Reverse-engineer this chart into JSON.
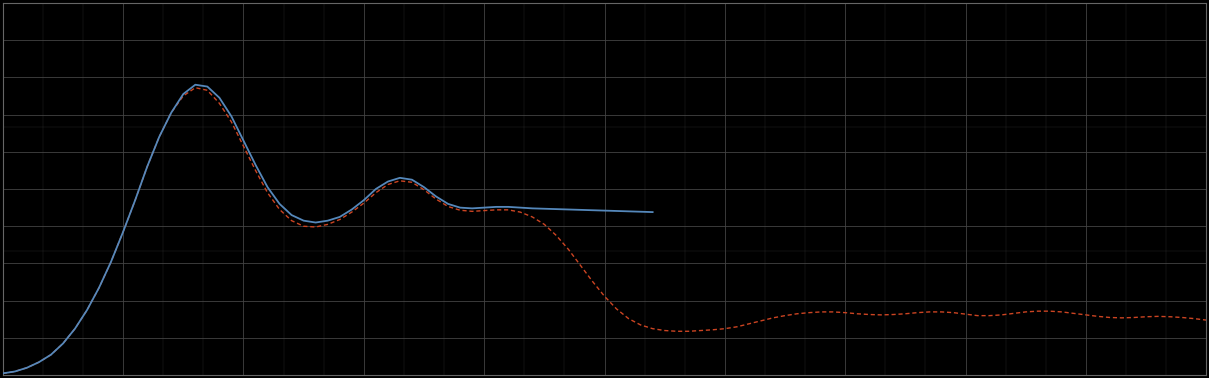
{
  "background_color": "#000000",
  "plot_bg_color": "#000000",
  "grid_color": "#444444",
  "blue_color": "#5588bb",
  "red_color": "#cc4422",
  "xlim": [
    0,
    100
  ],
  "ylim": [
    0,
    10
  ],
  "figsize": [
    12.09,
    3.78
  ],
  "dpi": 100,
  "blue_x": [
    0,
    1,
    2,
    3,
    4,
    5,
    6,
    7,
    8,
    9,
    10,
    11,
    12,
    13,
    14,
    15,
    16,
    17,
    18,
    19,
    20,
    21,
    22,
    23,
    24,
    25,
    26,
    27,
    28,
    29,
    30,
    31,
    32,
    33,
    34,
    35,
    36,
    37,
    38,
    39,
    40,
    41,
    42,
    43,
    44,
    45,
    46,
    47,
    48,
    49,
    50,
    51,
    52,
    53,
    54
  ],
  "blue_y": [
    0.05,
    0.1,
    0.2,
    0.35,
    0.55,
    0.85,
    1.25,
    1.75,
    2.35,
    3.05,
    3.85,
    4.7,
    5.6,
    6.4,
    7.05,
    7.55,
    7.8,
    7.75,
    7.45,
    6.95,
    6.3,
    5.65,
    5.05,
    4.6,
    4.3,
    4.15,
    4.1,
    4.15,
    4.25,
    4.45,
    4.7,
    5.0,
    5.2,
    5.3,
    5.25,
    5.05,
    4.8,
    4.6,
    4.5,
    4.48,
    4.5,
    4.52,
    4.52,
    4.5,
    4.48,
    4.47,
    4.46,
    4.45,
    4.44,
    4.43,
    4.42,
    4.41,
    4.4,
    4.39,
    4.38
  ],
  "red_x": [
    0,
    1,
    2,
    3,
    4,
    5,
    6,
    7,
    8,
    9,
    10,
    11,
    12,
    13,
    14,
    15,
    16,
    17,
    18,
    19,
    20,
    21,
    22,
    23,
    24,
    25,
    26,
    27,
    28,
    29,
    30,
    31,
    32,
    33,
    34,
    35,
    36,
    37,
    38,
    39,
    40,
    41,
    42,
    43,
    44,
    45,
    46,
    47,
    48,
    49,
    50,
    51,
    52,
    53,
    54,
    55,
    56,
    57,
    58,
    59,
    60,
    61,
    62,
    63,
    64,
    65,
    66,
    67,
    68,
    69,
    70,
    71,
    72,
    73,
    74,
    75,
    76,
    77,
    78,
    79,
    80,
    81,
    82,
    83,
    84,
    85,
    86,
    87,
    88,
    89,
    90,
    91,
    92,
    93,
    94,
    95,
    96,
    97,
    98,
    99,
    100
  ],
  "red_y": [
    0.05,
    0.1,
    0.2,
    0.35,
    0.55,
    0.85,
    1.25,
    1.75,
    2.35,
    3.05,
    3.85,
    4.7,
    5.6,
    6.4,
    7.05,
    7.5,
    7.72,
    7.65,
    7.3,
    6.8,
    6.15,
    5.5,
    4.9,
    4.45,
    4.15,
    4.0,
    3.98,
    4.05,
    4.18,
    4.38,
    4.62,
    4.9,
    5.12,
    5.22,
    5.18,
    4.98,
    4.73,
    4.53,
    4.43,
    4.4,
    4.42,
    4.44,
    4.44,
    4.38,
    4.25,
    4.05,
    3.75,
    3.38,
    2.95,
    2.52,
    2.12,
    1.78,
    1.52,
    1.35,
    1.25,
    1.2,
    1.18,
    1.18,
    1.2,
    1.22,
    1.25,
    1.3,
    1.38,
    1.46,
    1.54,
    1.6,
    1.65,
    1.68,
    1.7,
    1.7,
    1.68,
    1.65,
    1.63,
    1.62,
    1.63,
    1.65,
    1.68,
    1.7,
    1.7,
    1.68,
    1.64,
    1.6,
    1.6,
    1.62,
    1.66,
    1.7,
    1.72,
    1.72,
    1.7,
    1.66,
    1.62,
    1.58,
    1.55,
    1.54,
    1.55,
    1.57,
    1.58,
    1.57,
    1.55,
    1.52,
    1.48
  ]
}
